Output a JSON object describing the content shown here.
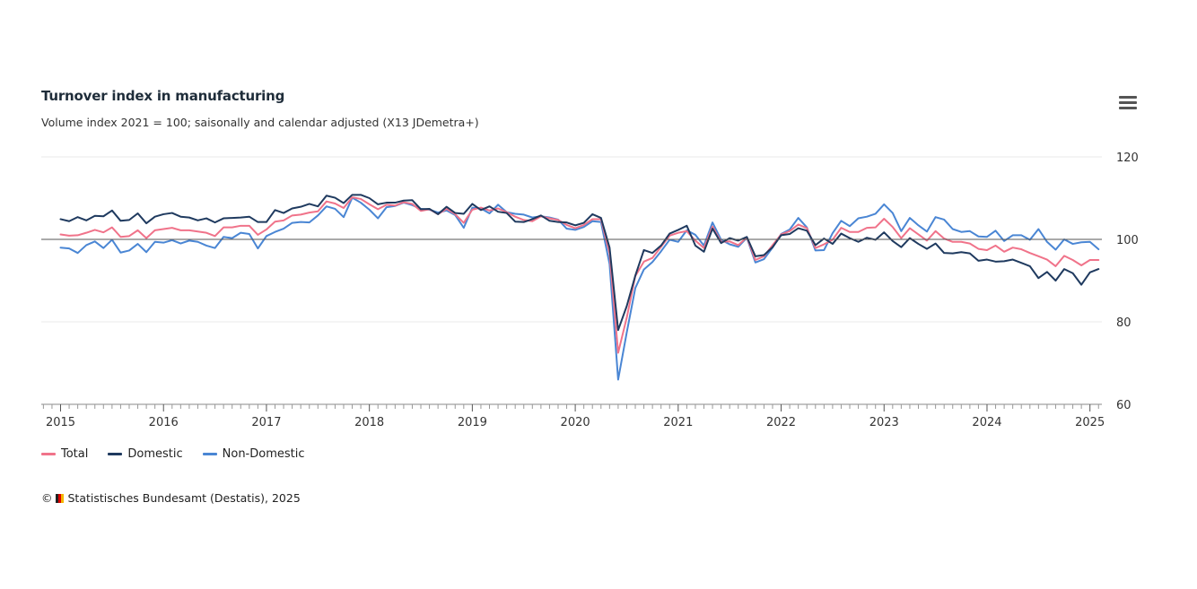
{
  "header": {
    "title": "Turnover index in manufacturing",
    "subtitle": "Volume index 2021 = 100; saisonally and calendar adjusted (X13 JDemetra+)",
    "menu_icon": "hamburger-menu-icon"
  },
  "credits": {
    "copyright_symbol": "©",
    "text": "Statistisches Bundesamt (Destatis), 2025"
  },
  "colors": {
    "total": "#f0738a",
    "domestic": "#1f3a5f",
    "non_domestic": "#4a86d4",
    "baseline": "#555555",
    "grid": "#e9e9e9"
  },
  "chart_data": {
    "type": "line",
    "title": "Turnover index in manufacturing",
    "subtitle": "Volume index 2021 = 100; saisonally and calendar adjusted (X13 JDemetra+)",
    "x_start": "2015-01",
    "x_step": "month",
    "x_ticks": [
      "2015",
      "2016",
      "2017",
      "2018",
      "2019",
      "2020",
      "2021",
      "2022",
      "2023",
      "2024",
      "2025"
    ],
    "y_ticks": [
      "120",
      "100",
      "80",
      "60"
    ],
    "ylim": [
      60,
      120
    ],
    "reference_line": 100,
    "legend_position": "bottom-left",
    "series": [
      {
        "name": "Total",
        "key": "total",
        "values": [
          101.2,
          100.9,
          101.0,
          101.6,
          102.3,
          101.7,
          102.9,
          100.6,
          100.8,
          102.2,
          100.3,
          102.2,
          102.5,
          102.8,
          102.2,
          102.2,
          101.9,
          101.6,
          100.8,
          102.9,
          102.9,
          103.3,
          103.3,
          101.1,
          102.4,
          104.3,
          104.6,
          105.8,
          106.0,
          106.5,
          106.8,
          109.2,
          108.7,
          107.6,
          110.2,
          109.8,
          108.5,
          107.3,
          108.4,
          108.2,
          109.0,
          108.6,
          106.9,
          107.3,
          106.1,
          107.4,
          106.1,
          104.0,
          107.2,
          107.7,
          107.0,
          107.5,
          106.6,
          105.5,
          104.7,
          104.4,
          105.6,
          105.1,
          104.7,
          103.5,
          102.7,
          103.5,
          104.9,
          104.9,
          96.6,
          72.5,
          81.0,
          91.1,
          94.6,
          95.5,
          98.2,
          100.9,
          101.6,
          102.0,
          99.7,
          97.9,
          103.1,
          99.4,
          99.5,
          98.6,
          100.5,
          95.0,
          95.9,
          98.6,
          101.2,
          102.0,
          103.6,
          102.7,
          97.9,
          98.8,
          99.9,
          102.8,
          101.8,
          101.8,
          102.8,
          102.9,
          105.0,
          103.0,
          100.3,
          102.7,
          101.2,
          99.7,
          102.0,
          100.2,
          99.4,
          99.4,
          99.0,
          97.7,
          97.4,
          98.5,
          97.0,
          98.0,
          97.6,
          96.7,
          95.9,
          95.1,
          93.5,
          96.0,
          95.0,
          93.7,
          95.0,
          95.0
        ]
      },
      {
        "name": "Domestic",
        "key": "domestic",
        "values": [
          104.9,
          104.4,
          105.4,
          104.6,
          105.7,
          105.6,
          107.0,
          104.5,
          104.7,
          106.3,
          103.9,
          105.5,
          106.1,
          106.4,
          105.5,
          105.3,
          104.6,
          105.1,
          104.1,
          105.1,
          105.2,
          105.3,
          105.5,
          104.2,
          104.2,
          107.1,
          106.4,
          107.5,
          107.9,
          108.6,
          108.0,
          110.6,
          110.1,
          108.8,
          110.8,
          110.8,
          110.0,
          108.5,
          108.9,
          108.9,
          109.4,
          109.5,
          107.3,
          107.4,
          106.1,
          107.9,
          106.4,
          106.2,
          108.6,
          107.1,
          108.0,
          106.7,
          106.4,
          104.3,
          104.2,
          104.9,
          105.8,
          104.5,
          104.2,
          104.1,
          103.4,
          104.0,
          106.1,
          105.2,
          98.0,
          78.0,
          83.8,
          91.2,
          97.4,
          96.7,
          98.5,
          101.4,
          102.3,
          103.3,
          98.5,
          97.0,
          102.6,
          99.1,
          100.3,
          99.7,
          100.6,
          95.9,
          96.2,
          98.1,
          101.0,
          101.3,
          102.7,
          102.1,
          98.6,
          100.2,
          98.9,
          101.4,
          100.3,
          99.4,
          100.4,
          99.9,
          101.7,
          99.6,
          98.1,
          100.3,
          98.9,
          97.7,
          99.0,
          96.7,
          96.6,
          96.9,
          96.6,
          94.8,
          95.1,
          94.6,
          94.7,
          95.1,
          94.3,
          93.5,
          90.6,
          92.1,
          90.0,
          92.8,
          91.8,
          89.0,
          92.0,
          92.8
        ]
      },
      {
        "name": "Non-Domestic",
        "key": "non_domestic",
        "values": [
          98.0,
          97.8,
          96.7,
          98.6,
          99.5,
          97.9,
          99.9,
          96.8,
          97.3,
          98.9,
          96.9,
          99.4,
          99.2,
          99.8,
          99.0,
          99.7,
          99.4,
          98.5,
          97.9,
          100.6,
          100.3,
          101.6,
          101.3,
          97.8,
          100.8,
          101.8,
          102.6,
          104.0,
          104.2,
          104.1,
          105.8,
          108.0,
          107.4,
          105.4,
          110.1,
          108.9,
          107.2,
          105.1,
          107.8,
          108.1,
          108.9,
          108.3,
          107.4,
          107.2,
          106.5,
          107.0,
          105.9,
          102.8,
          107.7,
          107.5,
          106.3,
          108.4,
          106.6,
          106.2,
          106.0,
          105.3,
          105.6,
          105.3,
          104.8,
          102.6,
          102.3,
          103.0,
          104.4,
          104.2,
          94.0,
          66.0,
          77.4,
          88.2,
          92.7,
          94.5,
          97.1,
          99.9,
          99.4,
          102.2,
          101.1,
          98.5,
          104.1,
          99.9,
          98.8,
          98.2,
          100.4,
          94.4,
          95.2,
          98.0,
          101.3,
          102.4,
          105.2,
          102.9,
          97.3,
          97.4,
          101.5,
          104.5,
          103.2,
          105.1,
          105.5,
          106.2,
          108.5,
          106.4,
          102.0,
          105.2,
          103.4,
          101.9,
          105.4,
          104.8,
          102.5,
          101.8,
          102.0,
          100.7,
          100.6,
          102.1,
          99.6,
          101.0,
          101.0,
          99.9,
          102.5,
          99.4,
          97.5,
          100.0,
          98.9,
          99.3,
          99.4,
          97.6
        ]
      }
    ]
  }
}
